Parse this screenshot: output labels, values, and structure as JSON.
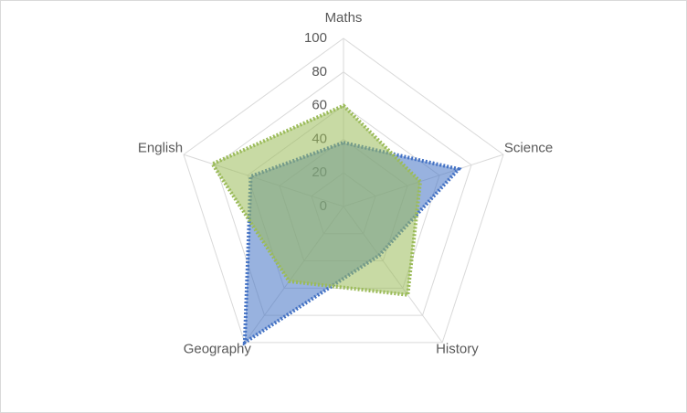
{
  "chart_data": {
    "type": "radar",
    "categories": [
      "Maths",
      "Science",
      "History",
      "Geography",
      "English"
    ],
    "series": [
      {
        "color": "#4472c4",
        "values": [
          38,
          72,
          36,
          100,
          58
        ]
      },
      {
        "color": "#9bbb59",
        "values": [
          60,
          48,
          65,
          55,
          82
        ]
      }
    ],
    "ylim": [
      0,
      100
    ],
    "yticks": [
      0,
      20,
      40,
      60,
      80,
      100
    ],
    "grid": true
  }
}
